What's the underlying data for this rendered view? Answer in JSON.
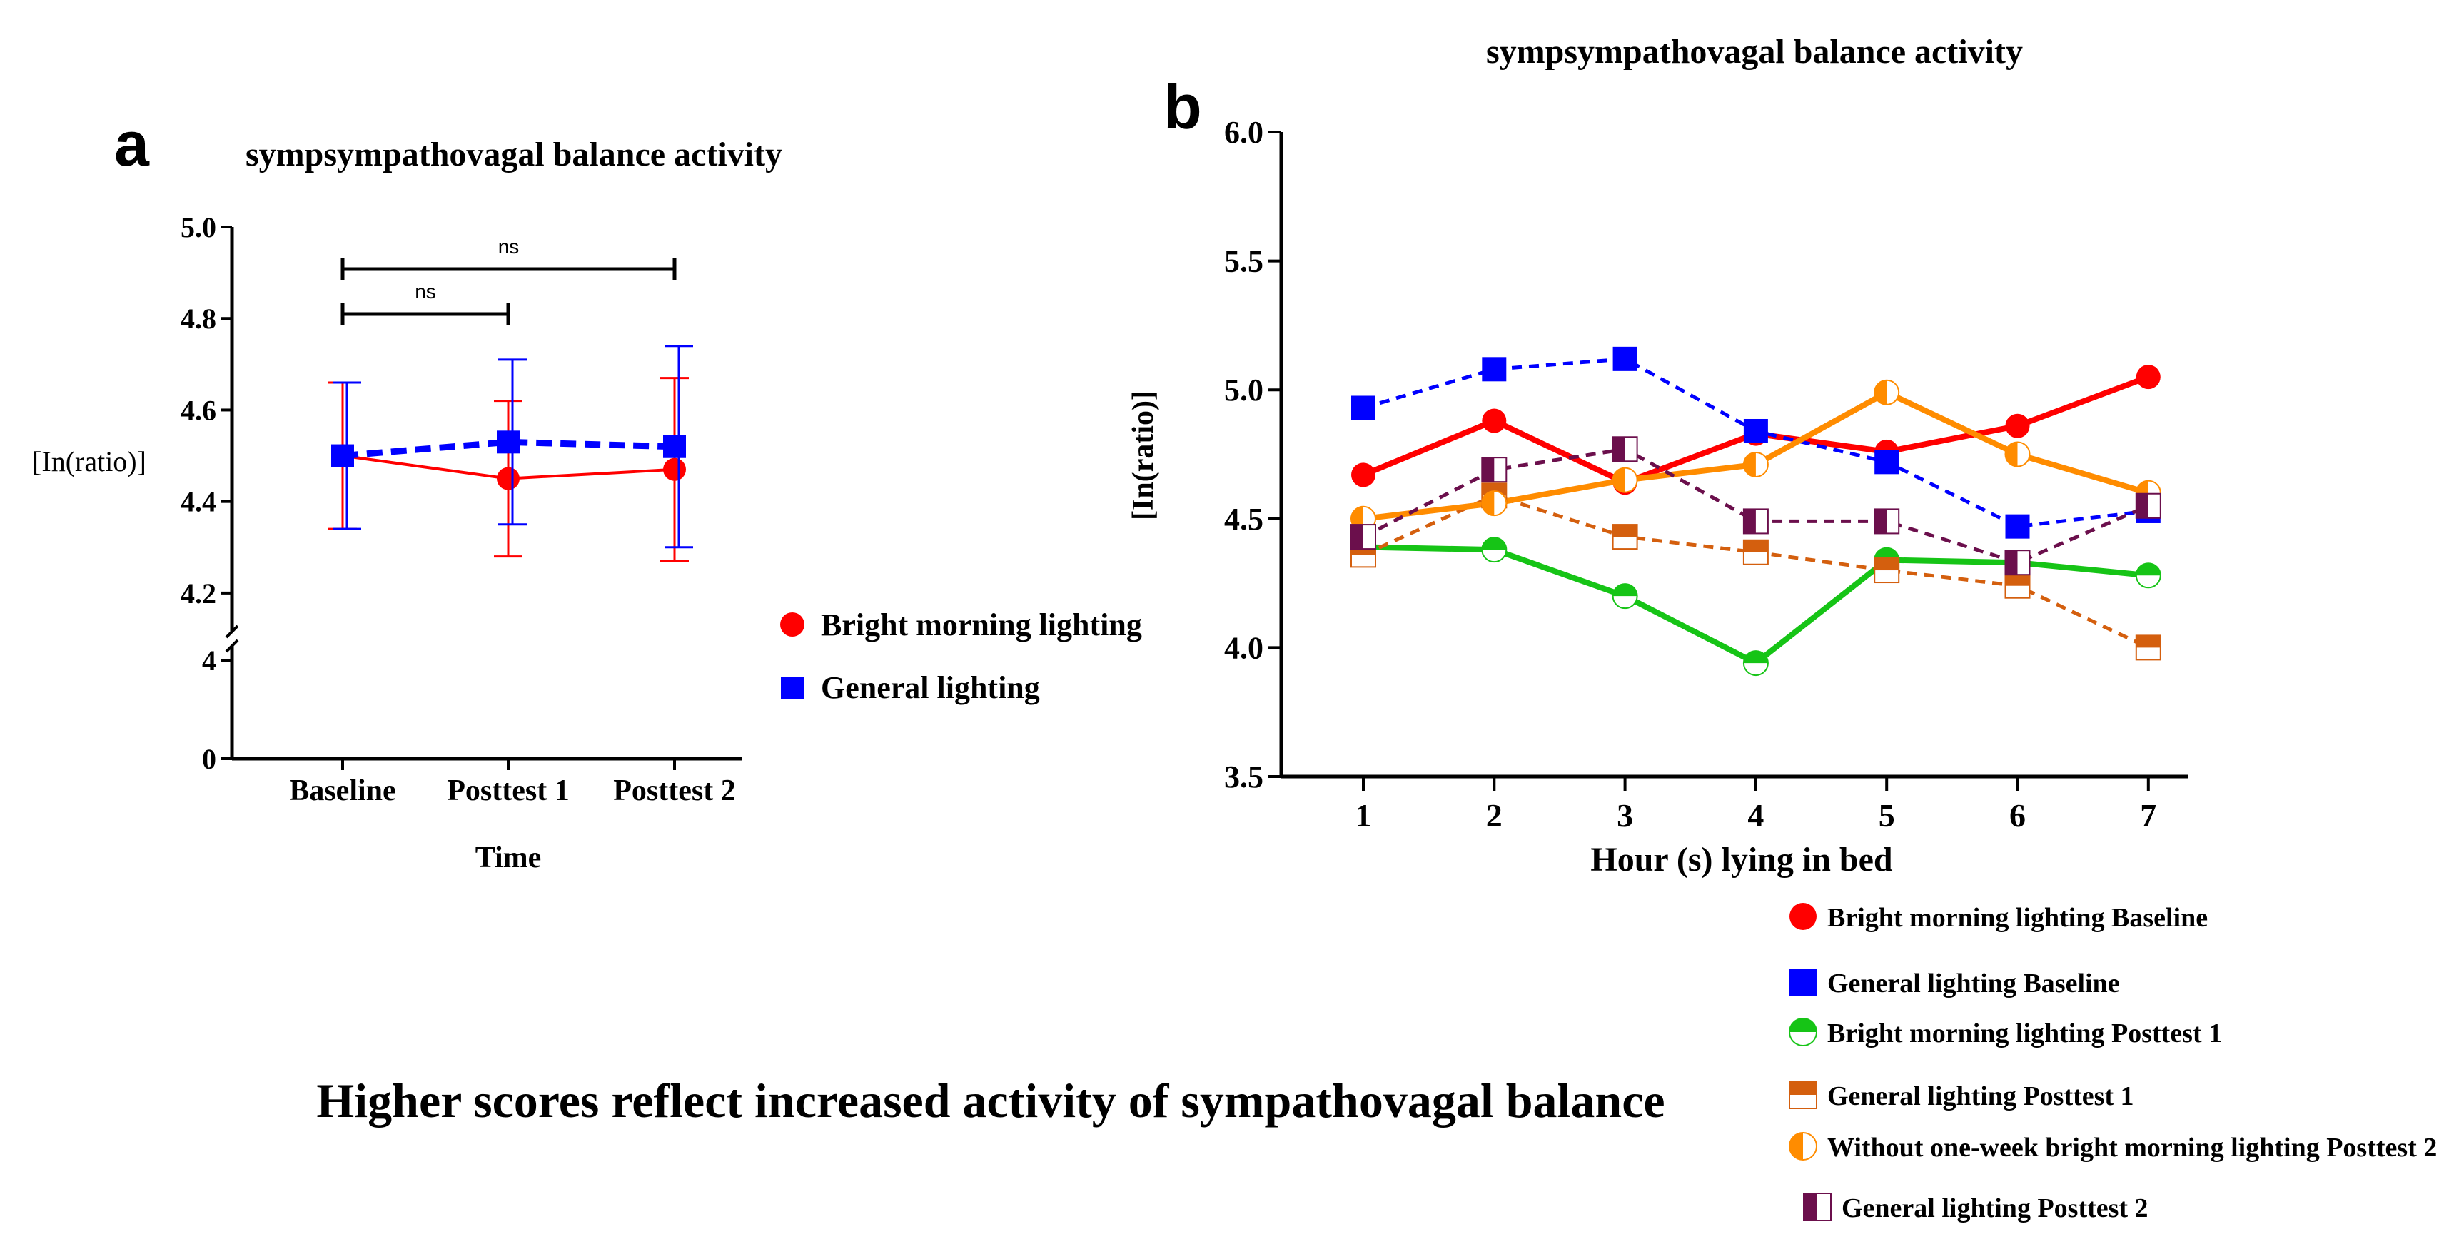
{
  "chart_data": [
    {
      "panel": "a",
      "type": "line",
      "title": "sympsympathovagal balance  activity",
      "xlabel": "Time",
      "ylabel": "[In(ratio)]",
      "categories": [
        "Baseline",
        "Posttest 1",
        "Posttest 2"
      ],
      "ylim": [
        0,
        5.0
      ],
      "axis_break": [
        4.0,
        4.1
      ],
      "yticks": [
        "0",
        "4",
        "4.2",
        "4.4",
        "4.6",
        "4.8",
        "5.0"
      ],
      "series": [
        {
          "name": "Bright morning lighting",
          "color": "#ff0000",
          "marker": "circle",
          "values": [
            4.5,
            4.45,
            4.47
          ],
          "err": [
            0.16,
            0.17,
            0.2
          ]
        },
        {
          "name": "General lighting",
          "color": "#0000ff",
          "marker": "square",
          "values": [
            4.5,
            4.53,
            4.52
          ],
          "err": [
            0.16,
            0.18,
            0.22
          ]
        }
      ],
      "significance": [
        {
          "from": "Baseline",
          "to": "Posttest 1",
          "label": "ns"
        },
        {
          "from": "Baseline",
          "to": "Posttest 2",
          "label": "ns"
        }
      ]
    },
    {
      "panel": "b",
      "type": "line",
      "title": "sympsympathovagal balance  activity",
      "xlabel": "Hour (s) lying in bed",
      "ylabel": "[In(ratio)]",
      "x": [
        1,
        2,
        3,
        4,
        5,
        6,
        7
      ],
      "ylim": [
        3.5,
        6.0
      ],
      "yticks": [
        "3.5",
        "4.0",
        "4.5",
        "5.0",
        "5.5",
        "6.0"
      ],
      "series": [
        {
          "name": "Bright morning lighting Baseline",
          "color": "#ff0000",
          "marker": "circle",
          "dashed": false,
          "values": [
            4.67,
            4.88,
            4.64,
            4.83,
            4.76,
            4.86,
            5.05
          ]
        },
        {
          "name": "General lighting Baseline",
          "color": "#0000ff",
          "marker": "square",
          "dashed": true,
          "values": [
            4.93,
            5.08,
            5.12,
            4.84,
            4.72,
            4.47,
            4.53
          ]
        },
        {
          "name": "Bright morning lighting Posttest 1",
          "color": "#16c416",
          "marker": "circle-half-bottom",
          "dashed": false,
          "values": [
            4.39,
            4.38,
            4.2,
            3.94,
            4.34,
            4.33,
            4.28
          ]
        },
        {
          "name": "General lighting Posttest 1",
          "color": "#d45f0e",
          "marker": "square-half-bottom",
          "dashed": true,
          "values": [
            4.36,
            4.59,
            4.43,
            4.37,
            4.3,
            4.24,
            4.0
          ]
        },
        {
          "name": "Without one-week bright morning lighting Posttest 2",
          "color": "#ff8c00",
          "marker": "circle-half-left",
          "dashed": false,
          "values": [
            4.5,
            4.56,
            4.65,
            4.71,
            4.99,
            4.75,
            4.6
          ]
        },
        {
          "name": "General lighting Posttest 2",
          "color": "#6b0f4c",
          "marker": "square-half-left",
          "dashed": true,
          "values": [
            4.43,
            4.69,
            4.77,
            4.49,
            4.49,
            4.33,
            4.55
          ]
        }
      ]
    }
  ],
  "panel_labels": {
    "a": "a",
    "b": "b"
  },
  "footnote": "Higher scores reflect increased activity of sympathovagal balance"
}
